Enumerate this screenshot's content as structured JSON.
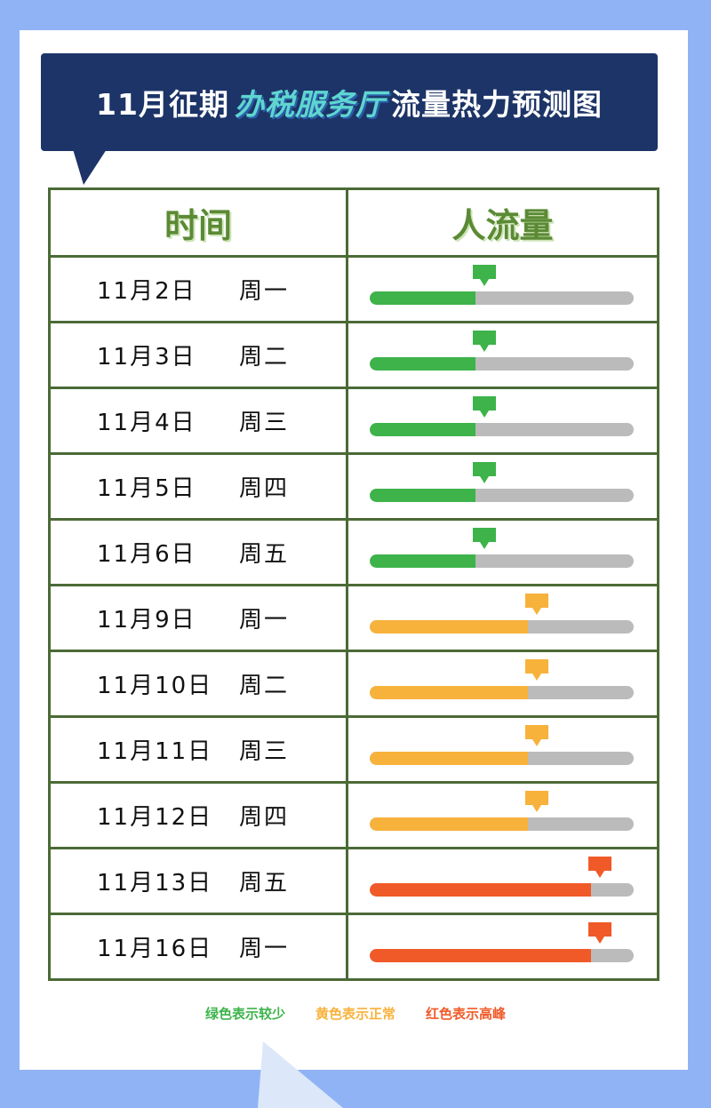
{
  "title": {
    "prefix": "11月征期",
    "highlight": "办税服务厅",
    "suffix": "流量热力预测图"
  },
  "table": {
    "header_time": "时间",
    "header_flow": "人流量"
  },
  "colors": {
    "low": "#3db34a",
    "normal": "#f7b23b",
    "peak": "#f05a28",
    "track": "#bbbbbb",
    "border": "#4b6a35",
    "banner": "#1c3467"
  },
  "rows": [
    {
      "date": "11月2日",
      "weekday": "周一",
      "level": "low",
      "fill": 0.4
    },
    {
      "date": "11月3日",
      "weekday": "周二",
      "level": "low",
      "fill": 0.4
    },
    {
      "date": "11月4日",
      "weekday": "周三",
      "level": "low",
      "fill": 0.4
    },
    {
      "date": "11月5日",
      "weekday": "周四",
      "level": "low",
      "fill": 0.4
    },
    {
      "date": "11月6日",
      "weekday": "周五",
      "level": "low",
      "fill": 0.4
    },
    {
      "date": "11月9日",
      "weekday": "周一",
      "level": "normal",
      "fill": 0.6
    },
    {
      "date": "11月10日",
      "weekday": "周二",
      "level": "normal",
      "fill": 0.6
    },
    {
      "date": "11月11日",
      "weekday": "周三",
      "level": "normal",
      "fill": 0.6
    },
    {
      "date": "11月12日",
      "weekday": "周四",
      "level": "normal",
      "fill": 0.6
    },
    {
      "date": "11月13日",
      "weekday": "周五",
      "level": "peak",
      "fill": 0.84
    },
    {
      "date": "11月16日",
      "weekday": "周一",
      "level": "peak",
      "fill": 0.84
    }
  ],
  "legend": {
    "low": "绿色表示较少",
    "normal": "黄色表示正常",
    "peak": "红色表示高峰"
  }
}
